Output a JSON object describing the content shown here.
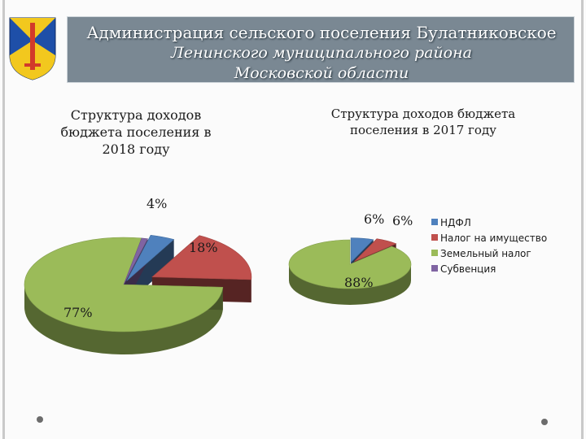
{
  "header": {
    "line1": "Администрация сельского поселения Булатниковское",
    "line2": "Ленинского муниципального района",
    "line3": "Московской области"
  },
  "chart_data": [
    {
      "type": "pie",
      "title": "Структура доходов бюджета поселения в 2018 году",
      "categories": [
        "НДФЛ",
        "Налог на имущество",
        "Земельный налог",
        "Субвенция"
      ],
      "values": [
        4,
        18,
        77,
        1
      ],
      "labels": [
        "4%",
        "18%",
        "77%",
        ""
      ],
      "colors": [
        "#4f81bd",
        "#c0504d",
        "#9bbb59",
        "#8064a2"
      ],
      "style": "3d-exploded"
    },
    {
      "type": "pie",
      "title": "Структура доходов бюджета поселения в 2017 году",
      "categories": [
        "НДФЛ",
        "Налог на имущество",
        "Земельный налог",
        "Субвенция"
      ],
      "values": [
        6,
        6,
        88,
        0
      ],
      "labels": [
        "6%",
        "6%",
        "88%",
        ""
      ],
      "colors": [
        "#4f81bd",
        "#c0504d",
        "#9bbb59",
        "#8064a2"
      ],
      "legend": "right",
      "style": "3d-exploded"
    }
  ],
  "legend": {
    "items": [
      {
        "label": "НДФЛ",
        "color": "#4f81bd"
      },
      {
        "label": "Налог на имущество",
        "color": "#c0504d"
      },
      {
        "label": "Земельный налог",
        "color": "#9bbb59"
      },
      {
        "label": "Субвенция",
        "color": "#8064a2"
      }
    ]
  },
  "emblem": {
    "colors": [
      "#1e4fa8",
      "#f2c81e",
      "#d23a2a"
    ],
    "icon": "coat-of-arms-icon"
  }
}
